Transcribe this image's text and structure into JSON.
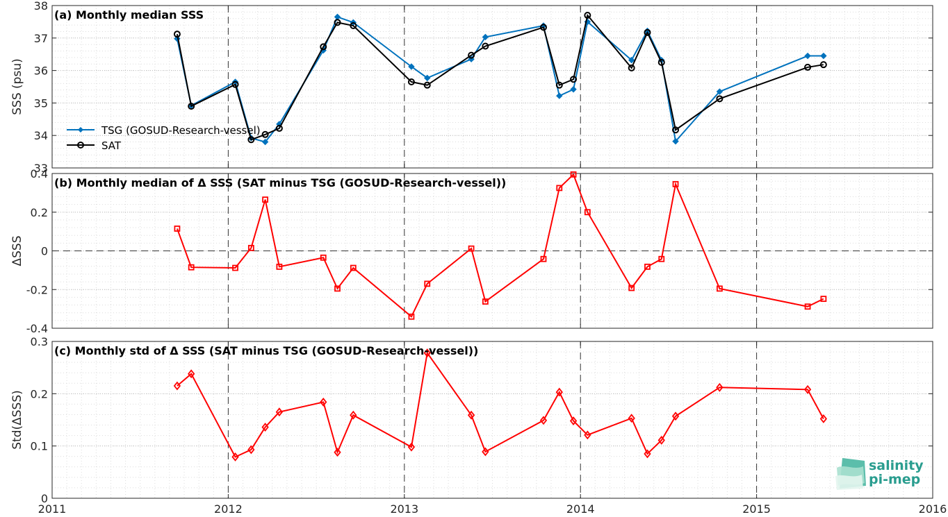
{
  "colors": {
    "tsg": "#0072BD",
    "sat": "#000000",
    "delta": "#FF0000",
    "logo": "#2a9d8f"
  },
  "logo": {
    "line1": "salinity",
    "line2": "pi-mep"
  },
  "chart_data": [
    {
      "type": "line",
      "title": "(a) Monthly median SSS",
      "ylabel": "SSS (psu)",
      "xlim": [
        2011,
        2016
      ],
      "ylim": [
        33,
        38
      ],
      "yticks": [
        33,
        34,
        35,
        36,
        37,
        38
      ],
      "ytick_labels": [
        "33",
        "34",
        "35",
        "36",
        "37",
        "38"
      ],
      "grid": true,
      "legend": "lower-left",
      "series": [
        {
          "name": "TSG (GOSUD-Research-vessel)",
          "marker": "diamond-filled",
          "x": [
            2011.71,
            2011.79,
            2012.04,
            2012.13,
            2012.21,
            2012.29,
            2012.54,
            2012.62,
            2012.71,
            2013.04,
            2013.13,
            2013.38,
            2013.46,
            2013.79,
            2013.88,
            2013.96,
            2014.04,
            2014.29,
            2014.38,
            2014.46,
            2014.54,
            2014.79,
            2015.29,
            2015.38
          ],
          "y": [
            36.98,
            34.92,
            35.65,
            33.92,
            33.8,
            34.35,
            36.62,
            37.65,
            37.48,
            36.12,
            35.77,
            36.35,
            37.03,
            37.38,
            35.22,
            35.42,
            37.5,
            36.32,
            37.22,
            36.32,
            33.82,
            35.35,
            36.45,
            36.45
          ]
        },
        {
          "name": "SAT",
          "marker": "circle-open",
          "x": [
            2011.71,
            2011.79,
            2012.04,
            2012.13,
            2012.21,
            2012.29,
            2012.54,
            2012.62,
            2012.71,
            2013.04,
            2013.13,
            2013.38,
            2013.46,
            2013.79,
            2013.88,
            2013.96,
            2014.04,
            2014.29,
            2014.38,
            2014.46,
            2014.54,
            2014.79,
            2015.29,
            2015.38
          ],
          "y": [
            37.12,
            34.9,
            35.57,
            33.87,
            34.03,
            34.22,
            36.73,
            37.48,
            37.38,
            35.65,
            35.55,
            36.47,
            36.75,
            37.33,
            35.55,
            35.73,
            37.7,
            36.08,
            37.17,
            36.25,
            34.17,
            35.13,
            36.1,
            36.18
          ]
        }
      ]
    },
    {
      "type": "line",
      "title": "(b) Monthly median of Δ SSS (SAT minus TSG (GOSUD-Research-vessel))",
      "ylabel": "ΔSSS",
      "xlim": [
        2011,
        2016
      ],
      "ylim": [
        -0.4,
        0.4
      ],
      "yticks": [
        -0.4,
        -0.2,
        0,
        0.2,
        0.4
      ],
      "ytick_labels": [
        "-0.4",
        "-0.2",
        "0",
        "0.2",
        "0.4"
      ],
      "zero_line": true,
      "grid": true,
      "series": [
        {
          "marker": "square-open",
          "x": [
            2011.71,
            2011.79,
            2012.04,
            2012.13,
            2012.21,
            2012.29,
            2012.54,
            2012.62,
            2012.71,
            2013.04,
            2013.13,
            2013.38,
            2013.46,
            2013.79,
            2013.88,
            2013.96,
            2014.04,
            2014.29,
            2014.38,
            2014.46,
            2014.54,
            2014.79,
            2015.29,
            2015.38
          ],
          "y": [
            0.115,
            -0.085,
            -0.088,
            0.015,
            0.265,
            -0.082,
            -0.035,
            -0.195,
            -0.088,
            -0.34,
            -0.17,
            0.012,
            -0.262,
            -0.042,
            0.325,
            0.395,
            0.2,
            -0.192,
            -0.082,
            -0.042,
            0.345,
            -0.195,
            -0.288,
            -0.248
          ]
        }
      ]
    },
    {
      "type": "line",
      "title": "(c) Monthly std of Δ SSS (SAT minus TSG (GOSUD-Research-vessel))",
      "ylabel": "Std(ΔSSS)",
      "xlim": [
        2011,
        2016
      ],
      "ylim": [
        0,
        0.3
      ],
      "yticks": [
        0,
        0.1,
        0.2,
        0.3
      ],
      "ytick_labels": [
        "0",
        "0.1",
        "0.2",
        "0.3"
      ],
      "xticks": [
        2011,
        2012,
        2013,
        2014,
        2015,
        2016
      ],
      "xtick_labels": [
        "2011",
        "2012",
        "2013",
        "2014",
        "2015",
        "2016"
      ],
      "grid": true,
      "series": [
        {
          "marker": "diamond-open",
          "x": [
            2011.71,
            2011.79,
            2012.04,
            2012.13,
            2012.21,
            2012.29,
            2012.54,
            2012.62,
            2012.71,
            2013.04,
            2013.13,
            2013.38,
            2013.46,
            2013.79,
            2013.88,
            2013.96,
            2014.04,
            2014.29,
            2014.38,
            2014.46,
            2014.54,
            2014.79,
            2015.29,
            2015.38
          ],
          "y": [
            0.215,
            0.238,
            0.079,
            0.093,
            0.136,
            0.165,
            0.184,
            0.088,
            0.159,
            0.098,
            0.278,
            0.159,
            0.089,
            0.149,
            0.203,
            0.148,
            0.121,
            0.153,
            0.085,
            0.111,
            0.157,
            0.212,
            0.208,
            0.152
          ]
        }
      ]
    }
  ]
}
